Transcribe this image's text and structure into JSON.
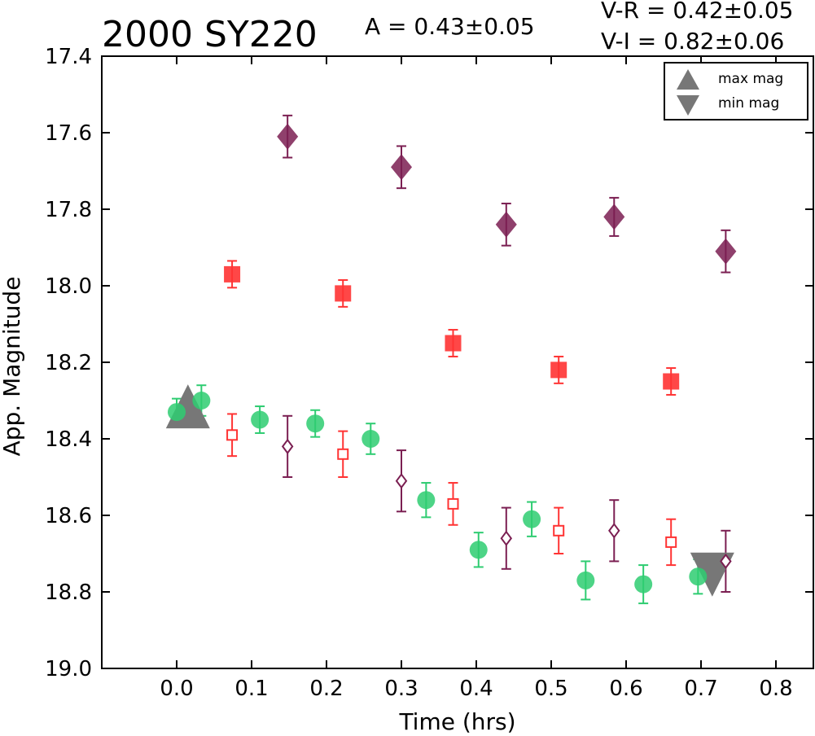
{
  "colors": {
    "V": "#2ecc71",
    "R": "#ff3333",
    "I": "#7b1f52",
    "marker_grey": "#777777"
  },
  "chart_data": {
    "type": "scatter",
    "title": "2000 SY220",
    "amplitude_text": "A  = 0.43±0.05",
    "vr_text": "V-R = 0.42±0.05",
    "vi_text": "V-I  = 0.82±0.06",
    "xlabel": "Time (hrs)",
    "ylabel": "App. Magnitude",
    "xlim": [
      -0.1,
      0.85
    ],
    "ylim": [
      19.0,
      17.4
    ],
    "y_inverted": true,
    "xticks": [
      "0.0",
      "0.1",
      "0.2",
      "0.3",
      "0.4",
      "0.5",
      "0.6",
      "0.7",
      "0.8"
    ],
    "yticks": [
      "17.4",
      "17.6",
      "17.8",
      "18.0",
      "18.2",
      "18.4",
      "18.6",
      "18.8",
      "19.0"
    ],
    "grid": false,
    "legend": {
      "placement": "top-right",
      "entries": [
        "max mag",
        "min mag"
      ]
    },
    "series": [
      {
        "band": "V",
        "marker": "circle",
        "points": [
          {
            "x": 0.0,
            "y": 18.33,
            "err": 0.035
          },
          {
            "x": 0.033,
            "y": 18.3,
            "err": 0.04
          },
          {
            "x": 0.111,
            "y": 18.35,
            "err": 0.035
          },
          {
            "x": 0.185,
            "y": 18.36,
            "err": 0.035
          },
          {
            "x": 0.259,
            "y": 18.4,
            "err": 0.04
          },
          {
            "x": 0.333,
            "y": 18.56,
            "err": 0.045
          },
          {
            "x": 0.403,
            "y": 18.69,
            "err": 0.045
          },
          {
            "x": 0.474,
            "y": 18.61,
            "err": 0.045
          },
          {
            "x": 0.546,
            "y": 18.77,
            "err": 0.05
          },
          {
            "x": 0.623,
            "y": 18.78,
            "err": 0.05
          },
          {
            "x": 0.696,
            "y": 18.76,
            "err": 0.045
          }
        ]
      },
      {
        "band": "R",
        "marker": "square",
        "points": [
          {
            "x": 0.074,
            "y": 17.97,
            "err": 0.035
          },
          {
            "x": 0.222,
            "y": 18.02,
            "err": 0.035
          },
          {
            "x": 0.369,
            "y": 18.15,
            "err": 0.035
          },
          {
            "x": 0.51,
            "y": 18.22,
            "err": 0.035
          },
          {
            "x": 0.66,
            "y": 18.25,
            "err": 0.035
          }
        ]
      },
      {
        "band": "I",
        "marker": "diamond",
        "points": [
          {
            "x": 0.148,
            "y": 17.61,
            "err": 0.055
          },
          {
            "x": 0.3,
            "y": 17.69,
            "err": 0.055
          },
          {
            "x": 0.44,
            "y": 17.84,
            "err": 0.055
          },
          {
            "x": 0.584,
            "y": 17.82,
            "err": 0.05
          },
          {
            "x": 0.733,
            "y": 17.91,
            "err": 0.055
          }
        ]
      },
      {
        "band": "R",
        "marker": "open-square",
        "points": [
          {
            "x": 0.074,
            "y": 18.39,
            "err": 0.055
          },
          {
            "x": 0.222,
            "y": 18.44,
            "err": 0.06
          },
          {
            "x": 0.369,
            "y": 18.57,
            "err": 0.055
          },
          {
            "x": 0.51,
            "y": 18.64,
            "err": 0.06
          },
          {
            "x": 0.66,
            "y": 18.67,
            "err": 0.06
          }
        ]
      },
      {
        "band": "I",
        "marker": "open-diamond",
        "points": [
          {
            "x": 0.148,
            "y": 18.42,
            "err": 0.08
          },
          {
            "x": 0.3,
            "y": 18.51,
            "err": 0.08
          },
          {
            "x": 0.44,
            "y": 18.66,
            "err": 0.08
          },
          {
            "x": 0.584,
            "y": 18.64,
            "err": 0.08
          },
          {
            "x": 0.733,
            "y": 18.72,
            "err": 0.08
          }
        ]
      }
    ],
    "extrema": {
      "max_mag": {
        "x": 0.015,
        "y": 18.33
      },
      "min_mag": {
        "x": 0.715,
        "y": 18.74
      }
    }
  }
}
